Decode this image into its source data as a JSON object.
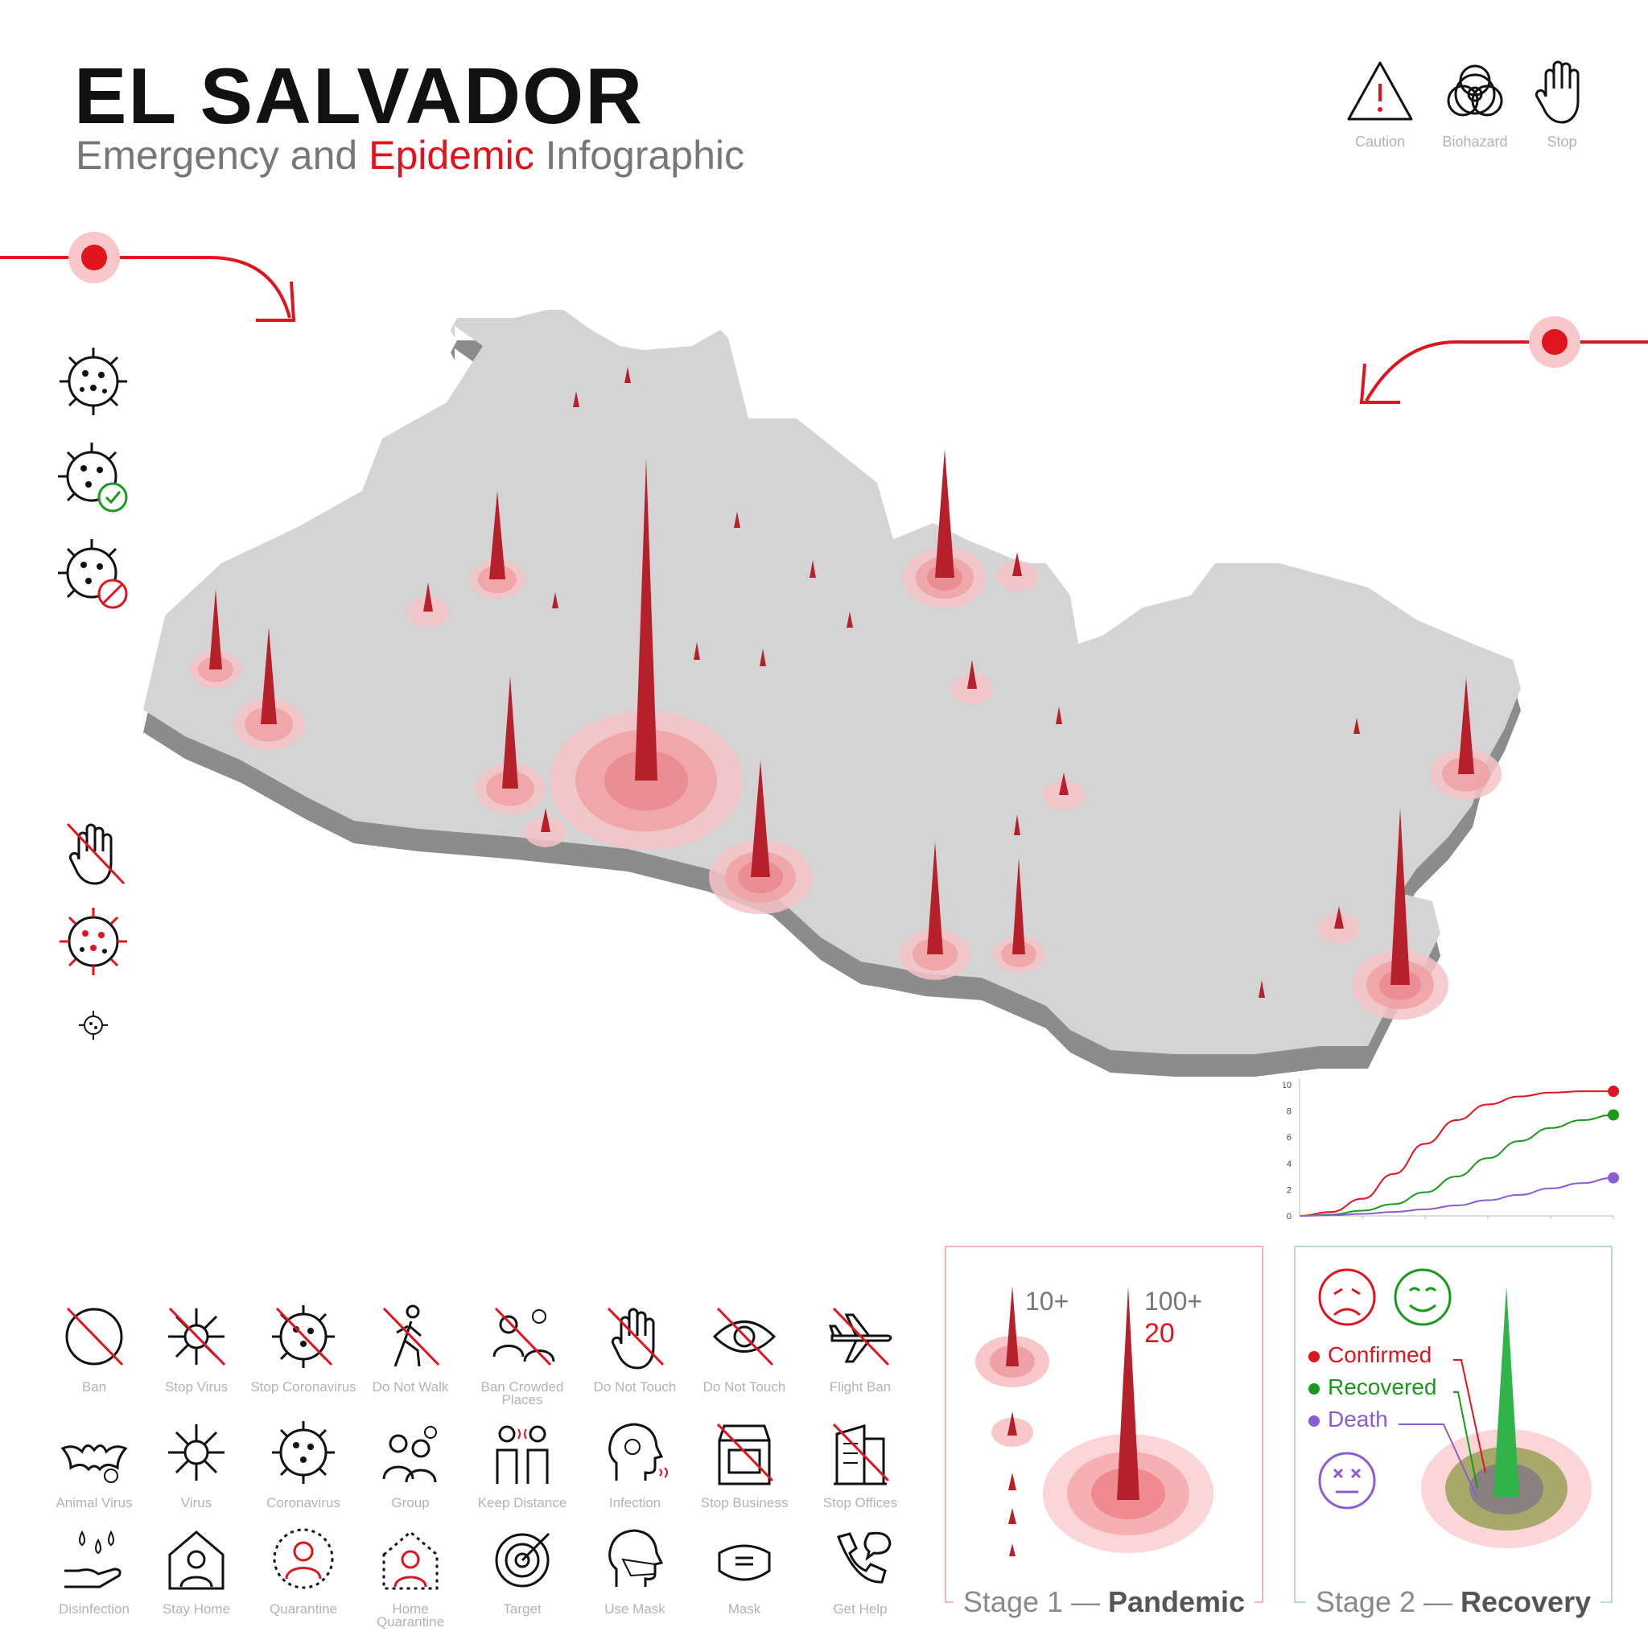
{
  "header": {
    "title": "EL SALVADOR",
    "subtitle_part1": "Emergency and ",
    "subtitle_part2": "Epidemic",
    "subtitle_part3": " Infographic"
  },
  "warning_icons": [
    {
      "label": "Caution",
      "icon": "caution-icon"
    },
    {
      "label": "Biohazard",
      "icon": "biohazard-icon"
    },
    {
      "label": "Stop",
      "icon": "stop-hand-icon"
    }
  ],
  "colors": {
    "accent": "#e0141e",
    "confirmed": "#e0141e",
    "recovered": "#1a9a1a",
    "death": "#8b5cd6",
    "map_top": "#d4d4d4",
    "map_side": "#8c8c8c"
  },
  "icon_grid": [
    [
      {
        "label": "Ban",
        "icon": "ban-icon"
      },
      {
        "label": "Stop Virus",
        "icon": "stop-virus-icon"
      },
      {
        "label": "Stop Coronavirus",
        "icon": "stop-coronavirus-icon"
      },
      {
        "label": "Do Not Walk",
        "icon": "do-not-walk-icon"
      },
      {
        "label": "Ban Crowded Places",
        "icon": "ban-crowded-places-icon"
      },
      {
        "label": "Do Not Touch",
        "icon": "do-not-touch-hand-icon"
      },
      {
        "label": "Do Not Touch",
        "icon": "do-not-touch-eye-icon"
      },
      {
        "label": "Flight Ban",
        "icon": "flight-ban-icon"
      }
    ],
    [
      {
        "label": "Animal Virus",
        "icon": "animal-virus-icon"
      },
      {
        "label": "Virus",
        "icon": "virus-icon"
      },
      {
        "label": "Coronavirus",
        "icon": "coronavirus-icon"
      },
      {
        "label": "Group",
        "icon": "group-icon"
      },
      {
        "label": "Keep Distance",
        "icon": "keep-distance-icon"
      },
      {
        "label": "Infection",
        "icon": "infection-icon"
      },
      {
        "label": "Stop Business",
        "icon": "stop-business-icon"
      },
      {
        "label": "Stop Offices",
        "icon": "stop-offices-icon"
      }
    ],
    [
      {
        "label": "Disinfection",
        "icon": "disinfection-icon"
      },
      {
        "label": "Stay Home",
        "icon": "stay-home-icon"
      },
      {
        "label": "Quarantine",
        "icon": "quarantine-icon"
      },
      {
        "label": "Home Quarantine",
        "icon": "home-quarantine-icon"
      },
      {
        "label": "Target",
        "icon": "target-icon"
      },
      {
        "label": "Use Mask",
        "icon": "use-mask-icon"
      },
      {
        "label": "Mask",
        "icon": "mask-icon"
      },
      {
        "label": "Get Help",
        "icon": "get-help-icon"
      }
    ]
  ],
  "stage1": {
    "title_a": "Stage 1 — ",
    "title_b": "Pandemic",
    "label_small": "10+",
    "label_large": "100+",
    "label_count": "20"
  },
  "stage2": {
    "title_a": "Stage 2 — ",
    "title_b": "Recovery",
    "legend": [
      "Confirmed",
      "Recovered",
      "Death"
    ]
  },
  "chart_data": {
    "type": "line",
    "y_ticks": [
      0,
      2,
      4,
      6,
      8,
      10
    ],
    "ylim": [
      0,
      10
    ],
    "xlim": [
      0,
      10
    ],
    "series": [
      {
        "color": "#e0141e",
        "x": [
          0,
          1,
          2,
          3,
          4,
          5,
          6,
          7,
          8,
          9,
          10
        ],
        "y": [
          0,
          0.3,
          1.3,
          3.2,
          5.5,
          7.3,
          8.5,
          9.1,
          9.4,
          9.5,
          9.5
        ]
      },
      {
        "color": "#1a9a1a",
        "x": [
          0,
          1,
          2,
          3,
          4,
          5,
          6,
          7,
          8,
          9,
          10
        ],
        "y": [
          0,
          0.1,
          0.4,
          0.9,
          1.8,
          3.0,
          4.4,
          5.7,
          6.7,
          7.3,
          7.7
        ]
      },
      {
        "color": "#8b5cd6",
        "x": [
          0,
          1,
          2,
          3,
          4,
          5,
          6,
          7,
          8,
          9,
          10
        ],
        "y": [
          0,
          0.05,
          0.15,
          0.3,
          0.5,
          0.8,
          1.2,
          1.6,
          2.1,
          2.5,
          2.9
        ]
      }
    ]
  }
}
